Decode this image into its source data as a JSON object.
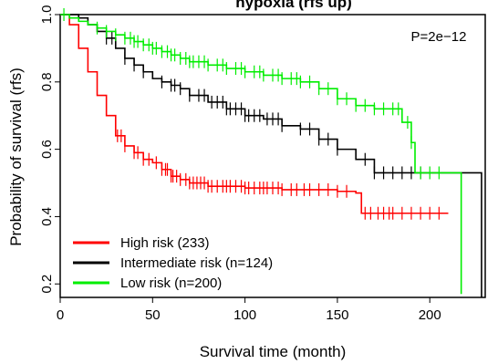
{
  "chart_data": {
    "type": "line",
    "title": "",
    "title_visible_fragment": "hypoxia (rfs up)",
    "xlabel": "Survival time (month)",
    "ylabel": "Probability of survival (rfs)",
    "xlim": [
      0,
      230
    ],
    "ylim": [
      0.16,
      1.0
    ],
    "x_ticks": [
      0,
      50,
      100,
      150,
      200
    ],
    "y_ticks": [
      0.2,
      0.4,
      0.6,
      0.8,
      1.0
    ],
    "y_tick_labels": [
      "0.2",
      "0.4",
      "0.6",
      "0.8",
      "1.0"
    ],
    "grid": false,
    "legend_position": "bottom-left",
    "annotation": "P=2e−12",
    "series": [
      {
        "name": "High risk (233)",
        "color": "#ff0000",
        "x": [
          0,
          5,
          10,
          15,
          20,
          25,
          30,
          35,
          40,
          45,
          50,
          55,
          60,
          65,
          70,
          80,
          100,
          120,
          150,
          160,
          163,
          210
        ],
        "y": [
          1.0,
          0.97,
          0.9,
          0.83,
          0.76,
          0.7,
          0.64,
          0.61,
          0.59,
          0.57,
          0.56,
          0.54,
          0.52,
          0.51,
          0.5,
          0.49,
          0.485,
          0.48,
          0.475,
          0.47,
          0.41,
          0.41
        ],
        "censor_x": [
          31,
          33,
          35,
          40,
          42,
          45,
          48,
          52,
          55,
          57,
          58,
          60,
          61,
          63,
          65,
          68,
          70,
          72,
          74,
          76,
          78,
          80,
          82,
          85,
          88,
          90,
          92,
          95,
          98,
          100,
          102,
          105,
          108,
          110,
          112,
          115,
          118,
          120,
          125,
          128,
          132,
          135,
          140,
          145,
          150,
          155,
          165,
          168,
          172,
          175,
          178,
          180,
          185,
          190,
          195,
          200,
          205
        ]
      },
      {
        "name": "Intermediate risk (n=124)",
        "color": "#000000",
        "x": [
          0,
          10,
          15,
          20,
          25,
          30,
          35,
          40,
          45,
          50,
          55,
          60,
          65,
          70,
          80,
          90,
          100,
          110,
          120,
          130,
          140,
          150,
          160,
          170,
          180,
          200,
          228
        ],
        "y": [
          1.0,
          0.99,
          0.97,
          0.95,
          0.93,
          0.9,
          0.87,
          0.85,
          0.83,
          0.81,
          0.8,
          0.79,
          0.78,
          0.76,
          0.74,
          0.72,
          0.7,
          0.69,
          0.67,
          0.66,
          0.63,
          0.6,
          0.57,
          0.53,
          0.53,
          0.53,
          0.16
        ],
        "censor_x": [
          25,
          28,
          35,
          40,
          45,
          55,
          60,
          62,
          65,
          70,
          75,
          78,
          82,
          85,
          88,
          90,
          92,
          95,
          98,
          100,
          102,
          105,
          108,
          112,
          115,
          118,
          120,
          130,
          135,
          140,
          145,
          150,
          165,
          170,
          175,
          180,
          185,
          190,
          195
        ]
      },
      {
        "name": "Low risk (n=200)",
        "color": "#00ee00",
        "x": [
          0,
          5,
          10,
          15,
          20,
          25,
          30,
          35,
          40,
          45,
          50,
          55,
          60,
          65,
          70,
          80,
          90,
          100,
          110,
          120,
          130,
          140,
          150,
          160,
          170,
          180,
          185,
          190,
          192,
          200,
          215,
          217
        ],
        "y": [
          1.0,
          0.99,
          0.98,
          0.97,
          0.96,
          0.95,
          0.94,
          0.93,
          0.92,
          0.91,
          0.9,
          0.89,
          0.88,
          0.87,
          0.86,
          0.85,
          0.84,
          0.83,
          0.82,
          0.81,
          0.8,
          0.78,
          0.75,
          0.73,
          0.72,
          0.72,
          0.68,
          0.62,
          0.53,
          0.53,
          0.53,
          0.17
        ],
        "censor_x": [
          2,
          20,
          25,
          30,
          35,
          38,
          40,
          42,
          45,
          48,
          50,
          52,
          55,
          58,
          60,
          62,
          65,
          68,
          70,
          72,
          75,
          78,
          80,
          85,
          88,
          90,
          95,
          98,
          100,
          105,
          108,
          110,
          115,
          118,
          120,
          125,
          128,
          130,
          135,
          140,
          145,
          150,
          155,
          160,
          165,
          170,
          175,
          180,
          183,
          188,
          190,
          195,
          200,
          205
        ]
      }
    ]
  }
}
